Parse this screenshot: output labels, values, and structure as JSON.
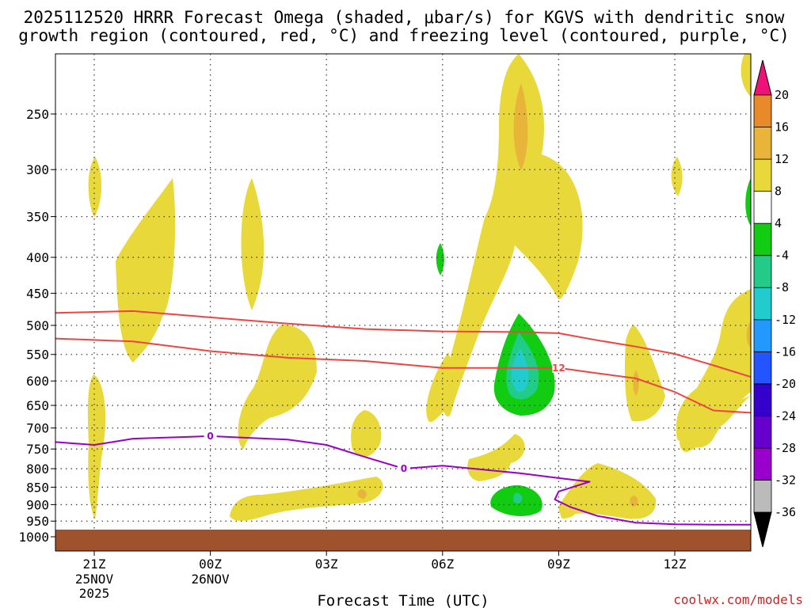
{
  "chart_data": {
    "type": "heatmap",
    "title_line1": "2025112520 HRRR Forecast Omega (shaded, μbar/s) for KGVS with dendritic snow",
    "title_line2": "growth region (contoured, red, °C) and freezing level (contoured, purple, °C)",
    "xlabel": "Forecast Time (UTC)",
    "ylabel": "",
    "x_hours": [
      -3,
      0,
      3,
      6,
      9,
      12
    ],
    "x_ticks": [
      {
        "hour": -3,
        "label": "21Z",
        "date": "25NOV",
        "year": "2025"
      },
      {
        "hour": 0,
        "label": "00Z",
        "date": "26NOV",
        "year": ""
      },
      {
        "hour": 3,
        "label": "03Z",
        "date": "",
        "year": ""
      },
      {
        "hour": 6,
        "label": "06Z",
        "date": "",
        "year": ""
      },
      {
        "hour": 9,
        "label": "09Z",
        "date": "",
        "year": ""
      },
      {
        "hour": 12,
        "label": "12Z",
        "date": "",
        "year": ""
      }
    ],
    "xlim": [
      -4,
      14
    ],
    "y_levels": [
      250,
      300,
      350,
      400,
      450,
      500,
      550,
      600,
      650,
      700,
      750,
      800,
      850,
      900,
      950,
      1000
    ],
    "ylim": [
      200,
      1025
    ],
    "y_scale": "log-pressure",
    "colorbar": {
      "colors": [
        "#bbbbbb",
        "#9900cc",
        "#6600cc",
        "#3300cc",
        "#2255ff",
        "#2299ff",
        "#22cccc",
        "#22cc88",
        "#11cc11",
        "#ffffff",
        "#e8d83a",
        "#e8b43a",
        "#e88a2a",
        "#ee4444",
        "#ee1177"
      ],
      "labels": [
        "-36",
        "-32",
        "-28",
        "-24",
        "-20",
        "-16",
        "-12",
        "-8",
        "-4",
        "4",
        "8",
        "12",
        "16",
        "20"
      ]
    },
    "contours": [
      {
        "name": "dendritic-lower-bound",
        "color": "#ee4444",
        "points": [
          [
            -4,
            480
          ],
          [
            -2,
            477
          ],
          [
            0,
            487
          ],
          [
            2,
            497
          ],
          [
            4,
            506
          ],
          [
            6,
            510
          ],
          [
            8,
            511
          ],
          [
            9,
            513
          ],
          [
            10,
            525
          ],
          [
            11,
            536
          ],
          [
            12,
            549
          ],
          [
            13,
            570
          ],
          [
            14,
            592
          ]
        ]
      },
      {
        "name": "dendritic-upper-bound-12C",
        "color": "#ee4444",
        "label": "12",
        "label_hour": 9,
        "points": [
          [
            -4,
            522
          ],
          [
            -2,
            527
          ],
          [
            0,
            544
          ],
          [
            2,
            556
          ],
          [
            4,
            562
          ],
          [
            6,
            575
          ],
          [
            8,
            575
          ],
          [
            9,
            575
          ],
          [
            10,
            585
          ],
          [
            11,
            595
          ],
          [
            12,
            622
          ],
          [
            13,
            661
          ],
          [
            14,
            666
          ]
        ]
      },
      {
        "name": "freezing-level-0C",
        "color": "#9900cc",
        "label": "0",
        "label_hour_1": 0,
        "label_hour_2": 5,
        "points": [
          [
            -4,
            733
          ],
          [
            -3,
            740
          ],
          [
            -2,
            725
          ],
          [
            -1,
            722
          ],
          [
            0,
            719
          ],
          [
            1,
            723
          ],
          [
            2,
            727
          ],
          [
            3,
            740
          ],
          [
            4,
            770
          ],
          [
            5,
            800
          ],
          [
            6,
            792
          ],
          [
            8,
            812
          ],
          [
            9,
            825
          ],
          [
            9.8,
            835
          ],
          [
            9,
            862
          ],
          [
            8.9,
            885
          ],
          [
            9.3,
            907
          ],
          [
            10,
            934
          ],
          [
            11,
            955
          ],
          [
            12,
            960
          ],
          [
            13,
            961
          ],
          [
            14,
            961
          ]
        ]
      }
    ],
    "shaded_regions": [
      {
        "name": "omega-pos-4-8",
        "color": "#e8d83a"
      },
      {
        "name": "omega-pos-8-12",
        "color": "#e8b43a"
      },
      {
        "name": "omega-pos-12-16",
        "color": "#e88a2a"
      },
      {
        "name": "omega-neg-4-8",
        "color": "#11cc11"
      },
      {
        "name": "omega-neg-8-12",
        "color": "#22cc88"
      },
      {
        "name": "omega-neg-12-16",
        "color": "#22cccc"
      }
    ],
    "surface_color": "#a0522d",
    "credit": "coolwx.com/models"
  }
}
